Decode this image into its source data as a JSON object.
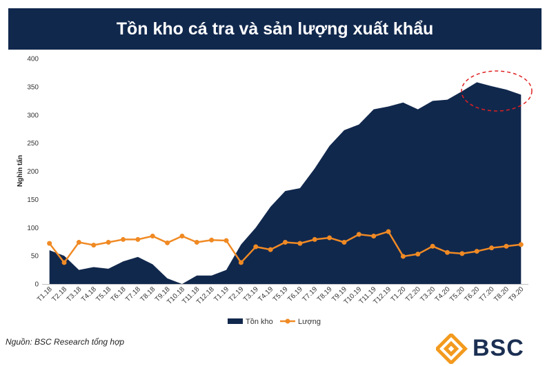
{
  "title": "Tồn kho cá tra và sản lượng xuất khẩu",
  "source_note": "Nguồn: BSC Research tổng hợp",
  "logo_text": "BSC",
  "colors": {
    "title_bg": "#11284d",
    "area": "#11284d",
    "line": "#f08a24",
    "logo_orange": "#f39a1e",
    "logo_navy": "#1b2f52",
    "highlight": "#e02020"
  },
  "chart_data": {
    "type": "area",
    "title": "",
    "xlabel": "",
    "ylabel": "Nghìn tấn",
    "ylim": [
      0,
      400
    ],
    "yticks": [
      0,
      50,
      100,
      150,
      200,
      250,
      300,
      350,
      400
    ],
    "grid": false,
    "legend_position": "bottom",
    "categories": [
      "T1.18",
      "T2.18",
      "T3.18",
      "T4.18",
      "T5.18",
      "T6.18",
      "T7.18",
      "T8.18",
      "T9.18",
      "T10.18",
      "T11.18",
      "T12.18",
      "T1.19",
      "T2.19",
      "T3.19",
      "T4.19",
      "T5.19",
      "T6.19",
      "T7.19",
      "T8.19",
      "T9.19",
      "T10.19",
      "T11.19",
      "T12.19",
      "T1.20",
      "T2.20",
      "T3.20",
      "T4.20",
      "T5.20",
      "T6.20",
      "T7.20",
      "T8.20",
      "T9.20"
    ],
    "series": [
      {
        "name": "Tồn kho",
        "type": "area",
        "values": [
          60,
          50,
          25,
          30,
          27,
          40,
          48,
          35,
          10,
          0,
          15,
          15,
          25,
          70,
          100,
          137,
          165,
          170,
          205,
          245,
          273,
          283,
          310,
          315,
          322,
          310,
          325,
          327,
          342,
          358,
          351,
          345,
          336
        ]
      },
      {
        "name": "Lượng",
        "type": "line",
        "values": [
          72,
          38,
          74,
          69,
          74,
          79,
          79,
          85,
          73,
          85,
          74,
          78,
          77,
          38,
          66,
          61,
          74,
          72,
          79,
          82,
          74,
          88,
          85,
          93,
          49,
          53,
          67,
          56,
          54,
          58,
          64,
          67,
          70
        ]
      }
    ],
    "annotations": [
      {
        "type": "dashed-ellipse",
        "target": "T5.20–T9.20 inventory peak",
        "color": "#e02020"
      }
    ]
  }
}
